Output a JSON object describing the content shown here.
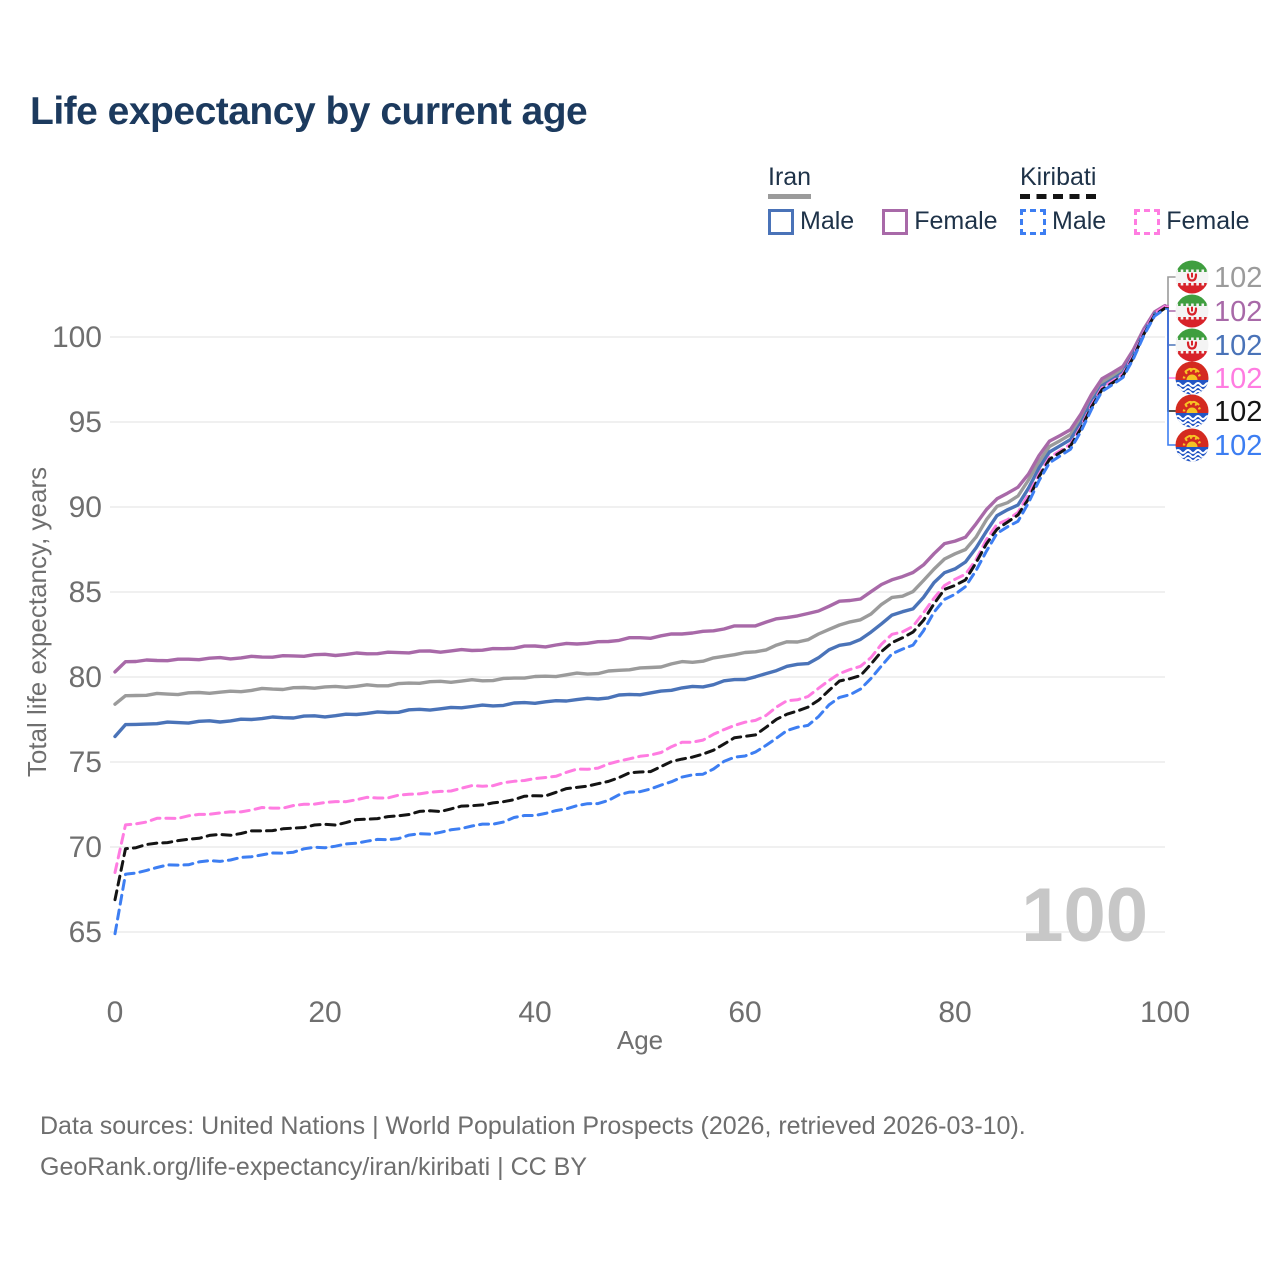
{
  "title": "Life expectancy by current age",
  "watermark": "100",
  "legend": {
    "groups": [
      {
        "country": "Iran",
        "line_style": "solid",
        "line_color": "#9b9b9b",
        "items": [
          {
            "label": "Male",
            "color": "#4a73b8",
            "dashed": false
          },
          {
            "label": "Female",
            "color": "#a869a8",
            "dashed": false
          }
        ]
      },
      {
        "country": "Kiribati",
        "line_style": "dashed",
        "line_color": "#141414",
        "items": [
          {
            "label": "Male",
            "color": "#3d7ef2",
            "dashed": true
          },
          {
            "label": "Female",
            "color": "#ff7ce1",
            "dashed": true
          }
        ]
      }
    ]
  },
  "chart_data": {
    "type": "line",
    "title": "Life expectancy by current age",
    "xlabel": "Age",
    "ylabel": "Total life expectancy, years",
    "xlim": [
      0,
      100
    ],
    "ylim": [
      65,
      102
    ],
    "x_ticks": [
      0,
      20,
      40,
      60,
      80,
      100
    ],
    "y_ticks": [
      65,
      70,
      75,
      80,
      85,
      90,
      95,
      100
    ],
    "grid": "horizontal",
    "legend_position": "top-right",
    "current_age_indicator": "100",
    "ages": [
      0,
      1,
      5,
      10,
      15,
      20,
      25,
      30,
      35,
      40,
      45,
      50,
      55,
      60,
      65,
      70,
      75,
      80,
      85,
      90,
      95,
      100
    ],
    "series": [
      {
        "name": "Iran",
        "sex": "both",
        "color": "#9b9b9b",
        "dashed": false,
        "flag": "iran-flag-icon",
        "end_label": "102",
        "values": [
          78.4,
          78.9,
          79.0,
          79.1,
          79.3,
          79.4,
          79.5,
          79.7,
          79.8,
          80.0,
          80.2,
          80.5,
          80.9,
          81.4,
          82.1,
          83.2,
          84.8,
          87.2,
          90.3,
          93.9,
          97.7,
          101.8
        ]
      },
      {
        "name": "Iran Female",
        "sex": "female",
        "color": "#a869a8",
        "dashed": false,
        "flag": "iran-flag-icon",
        "end_label": "102",
        "values": [
          80.3,
          80.9,
          81.0,
          81.1,
          81.2,
          81.3,
          81.4,
          81.5,
          81.6,
          81.8,
          82.0,
          82.3,
          82.6,
          83.0,
          83.6,
          84.5,
          85.9,
          88.0,
          90.8,
          94.2,
          97.9,
          101.85
        ]
      },
      {
        "name": "Iran Male",
        "sex": "male",
        "color": "#4a73b8",
        "dashed": false,
        "flag": "iran-flag-icon",
        "end_label": "102",
        "values": [
          76.5,
          77.2,
          77.3,
          77.4,
          77.6,
          77.7,
          77.9,
          78.1,
          78.3,
          78.5,
          78.7,
          79.0,
          79.4,
          79.9,
          80.7,
          82.0,
          83.8,
          86.4,
          89.8,
          93.6,
          97.5,
          101.75
        ]
      },
      {
        "name": "Kiribati Female",
        "sex": "female",
        "color": "#ff7ce1",
        "dashed": true,
        "flag": "kiribati-flag-icon",
        "end_label": "102",
        "values": [
          68.5,
          71.3,
          71.7,
          72.0,
          72.3,
          72.6,
          72.9,
          73.2,
          73.6,
          74.0,
          74.6,
          75.3,
          76.2,
          77.3,
          78.7,
          80.4,
          82.7,
          85.7,
          89.3,
          93.3,
          97.4,
          101.8
        ]
      },
      {
        "name": "Kiribati",
        "sex": "both",
        "color": "#141414",
        "dashed": true,
        "flag": "kiribati-flag-icon",
        "end_label": "102",
        "values": [
          66.9,
          69.9,
          70.3,
          70.7,
          71.0,
          71.3,
          71.7,
          72.1,
          72.5,
          73.0,
          73.6,
          74.4,
          75.3,
          76.5,
          78.0,
          79.9,
          82.3,
          85.4,
          89.1,
          93.2,
          97.3,
          101.7
        ]
      },
      {
        "name": "Kiribati Male",
        "sex": "male",
        "color": "#3d7ef2",
        "dashed": true,
        "flag": "kiribati-flag-icon",
        "end_label": "102",
        "values": [
          64.9,
          68.4,
          68.9,
          69.2,
          69.6,
          70.0,
          70.4,
          70.8,
          71.3,
          71.9,
          72.5,
          73.3,
          74.2,
          75.4,
          77.0,
          79.0,
          81.6,
          84.9,
          88.8,
          93.0,
          97.2,
          101.65
        ]
      }
    ]
  },
  "footer": {
    "line1": "Data sources: United Nations | World Population Prospects (2026, retrieved 2026-03-10).",
    "line2": "GeoRank.org/life-expectancy/iran/kiribati | CC BY"
  }
}
